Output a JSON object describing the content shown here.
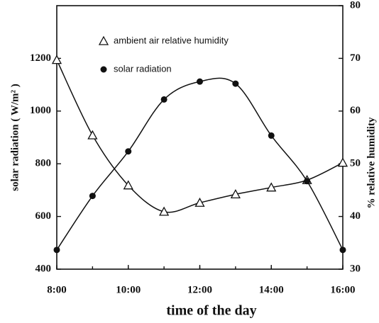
{
  "chart_data": {
    "type": "line",
    "x_label": "time of the day",
    "y_label": "solar radiation  ( W/m² )",
    "y2_label": "% relative humidity",
    "x": [
      8,
      9,
      10,
      11,
      12,
      13,
      14,
      15,
      16
    ],
    "xlim": [
      8,
      16
    ],
    "xticks": [
      {
        "value": 8,
        "label": "8:00"
      },
      {
        "value": 10,
        "label": "10:00"
      },
      {
        "value": 12,
        "label": "12:00"
      },
      {
        "value": 14,
        "label": "14:00"
      },
      {
        "value": 16,
        "label": "16:00"
      }
    ],
    "ylim": [
      400,
      1400
    ],
    "yticks": [
      400,
      600,
      800,
      1000,
      1200
    ],
    "y2lim": [
      30,
      80
    ],
    "y2ticks": [
      30,
      40,
      50,
      60,
      70,
      80
    ],
    "series": [
      {
        "name": "ambient air relative humidity",
        "color": "#111111",
        "marker": "triangle",
        "axis": "y2",
        "values": [
          69.7,
          55.4,
          45.9,
          40.9,
          42.6,
          44.2,
          45.5,
          46.9,
          50.2
        ]
      },
      {
        "name": "solar radiation",
        "color": "#111111",
        "marker": "circle",
        "axis": "y",
        "values": [
          473,
          678,
          847,
          1044,
          1112,
          1104,
          907,
          734,
          473
        ]
      }
    ]
  }
}
